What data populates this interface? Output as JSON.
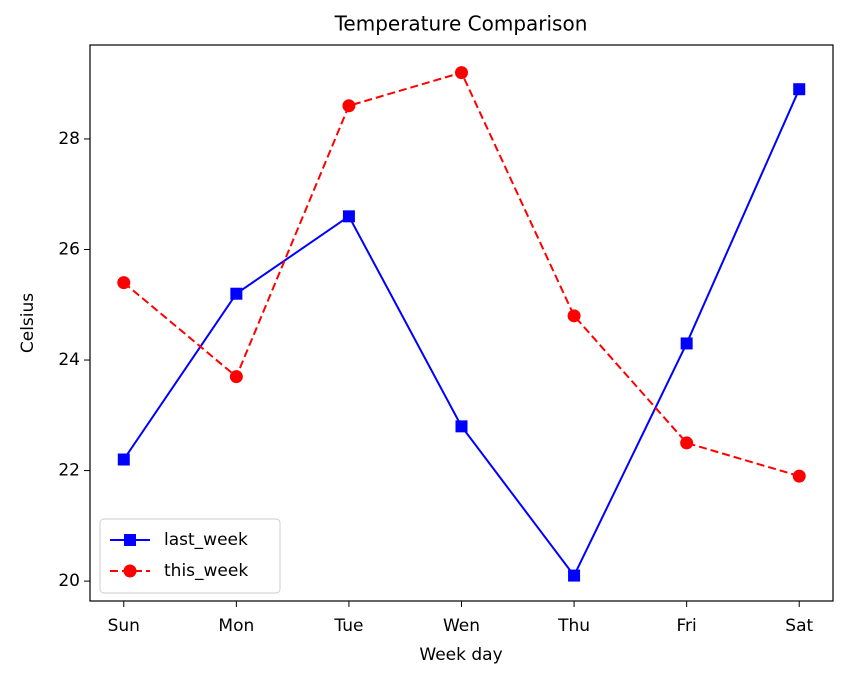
{
  "chart_data": {
    "type": "line",
    "title": "Temperature Comparison",
    "xlabel": "Week day",
    "ylabel": "Celsius",
    "categories": [
      "Sun",
      "Mon",
      "Tue",
      "Wen",
      "Thu",
      "Fri",
      "Sat"
    ],
    "series": [
      {
        "name": "last_week",
        "color": "#0000ff",
        "linestyle": "solid",
        "marker": "square",
        "values": [
          22.2,
          25.2,
          26.6,
          22.8,
          20.1,
          24.3,
          28.9
        ]
      },
      {
        "name": "this_week",
        "color": "#ff0000",
        "linestyle": "dashed",
        "marker": "circle",
        "values": [
          25.4,
          23.7,
          28.6,
          29.2,
          24.8,
          22.5,
          21.9
        ]
      }
    ],
    "ylim": [
      19.64,
      29.7
    ],
    "yticks": [
      20,
      22,
      24,
      26,
      28
    ],
    "grid": false,
    "legend": "lower left"
  }
}
